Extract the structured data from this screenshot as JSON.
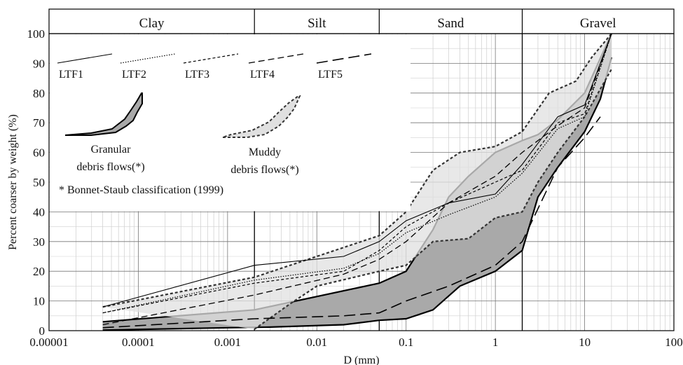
{
  "chart_data": {
    "type": "line",
    "title": "",
    "xlabel": "D (mm)",
    "ylabel": "Percent coarser by weight (%)",
    "x_scale": "log",
    "xlim": [
      1e-05,
      100
    ],
    "ylim": [
      0,
      100
    ],
    "x_ticks": [
      1e-05,
      0.0001,
      0.001,
      0.01,
      0.1,
      1,
      10,
      100
    ],
    "x_tick_labels": [
      "0.00001",
      "0.0001",
      "0.001",
      "0.01",
      "0.1",
      "1",
      "10",
      "100"
    ],
    "y_ticks": [
      0,
      10,
      20,
      30,
      40,
      50,
      60,
      70,
      80,
      90,
      100
    ],
    "y_tick_labels": [
      "0",
      "10",
      "20",
      "30",
      "40",
      "50",
      "60",
      "70",
      "80",
      "90",
      "100"
    ],
    "grid": true,
    "zones": [
      {
        "label": "Clay",
        "from": 1e-05,
        "to": 0.002
      },
      {
        "label": "Silt",
        "from": 0.002,
        "to": 0.05
      },
      {
        "label": "Sand",
        "from": 0.05,
        "to": 2
      },
      {
        "label": "Gravel",
        "from": 2,
        "to": 100
      }
    ],
    "envelopes": [
      {
        "name": "Granular debris flows(*)",
        "fill": "#a9a9a9",
        "stroke": "#000000",
        "dashed": false,
        "upper": [
          [
            4e-05,
            3
          ],
          [
            0.002,
            7
          ],
          [
            0.05,
            16
          ],
          [
            0.1,
            20
          ],
          [
            0.2,
            34
          ],
          [
            0.3,
            45
          ],
          [
            0.5,
            52
          ],
          [
            1,
            60
          ],
          [
            2,
            64
          ],
          [
            3,
            66
          ],
          [
            5,
            71
          ],
          [
            10,
            80
          ],
          [
            20,
            100
          ]
        ],
        "lower": [
          [
            4e-05,
            0.2
          ],
          [
            0.001,
            1
          ],
          [
            0.003,
            1.2
          ],
          [
            0.02,
            2
          ],
          [
            0.05,
            3.5
          ],
          [
            0.1,
            4
          ],
          [
            0.2,
            7
          ],
          [
            0.4,
            15
          ],
          [
            1,
            20
          ],
          [
            2,
            27
          ],
          [
            3,
            45
          ],
          [
            5,
            55
          ],
          [
            10,
            67
          ],
          [
            15,
            78
          ],
          [
            20,
            92
          ]
        ]
      },
      {
        "name": "Muddy debris flows(*)",
        "fill": "#e0e0e0",
        "stroke": "#333333",
        "dashed": true,
        "upper": [
          [
            4e-05,
            8
          ],
          [
            0.002,
            18
          ],
          [
            0.05,
            32
          ],
          [
            0.1,
            40
          ],
          [
            0.2,
            54
          ],
          [
            0.4,
            60
          ],
          [
            1,
            62
          ],
          [
            2,
            67
          ],
          [
            4,
            80
          ],
          [
            8,
            84
          ],
          [
            12,
            92
          ],
          [
            20,
            100
          ]
        ],
        "lower": [
          [
            0.002,
            0.5
          ],
          [
            0.005,
            9
          ],
          [
            0.01,
            15
          ],
          [
            0.05,
            20
          ],
          [
            0.1,
            22
          ],
          [
            0.2,
            30
          ],
          [
            0.5,
            31
          ],
          [
            1,
            38
          ],
          [
            2,
            40
          ],
          [
            3,
            50
          ],
          [
            5,
            60
          ],
          [
            10,
            72
          ],
          [
            20,
            88
          ]
        ]
      }
    ],
    "series": [
      {
        "name": "LTF1",
        "dash": "",
        "width": 1.1,
        "points": [
          [
            4e-05,
            8
          ],
          [
            0.002,
            22
          ],
          [
            0.02,
            25
          ],
          [
            0.05,
            30
          ],
          [
            0.1,
            37
          ],
          [
            0.3,
            43
          ],
          [
            1,
            46
          ],
          [
            2,
            56
          ],
          [
            5,
            72
          ],
          [
            10,
            76
          ],
          [
            20,
            100
          ]
        ]
      },
      {
        "name": "LTF2",
        "dash": "1.5,2",
        "width": 1.2,
        "points": [
          [
            4e-05,
            6
          ],
          [
            0.002,
            17
          ],
          [
            0.02,
            21
          ],
          [
            0.05,
            26
          ],
          [
            0.1,
            33
          ],
          [
            0.3,
            39
          ],
          [
            1,
            45
          ],
          [
            2,
            53
          ],
          [
            5,
            68
          ],
          [
            10,
            72
          ],
          [
            20,
            100
          ]
        ]
      },
      {
        "name": "LTF3",
        "dash": "4,3",
        "width": 1.2,
        "points": [
          [
            4e-05,
            6
          ],
          [
            0.002,
            16
          ],
          [
            0.02,
            20
          ],
          [
            0.05,
            27
          ],
          [
            0.1,
            35
          ],
          [
            0.3,
            43
          ],
          [
            1,
            50
          ],
          [
            2,
            54
          ],
          [
            5,
            70
          ],
          [
            10,
            73
          ],
          [
            20,
            100
          ]
        ]
      },
      {
        "name": "LTF4",
        "dash": "9,5",
        "width": 1.3,
        "points": [
          [
            4e-05,
            2
          ],
          [
            0.002,
            12
          ],
          [
            0.02,
            19
          ],
          [
            0.05,
            24
          ],
          [
            0.1,
            30
          ],
          [
            0.3,
            43
          ],
          [
            1,
            52
          ],
          [
            2,
            60
          ],
          [
            5,
            69
          ],
          [
            10,
            75
          ],
          [
            20,
            100
          ]
        ]
      },
      {
        "name": "LTF5",
        "dash": "16,7",
        "width": 1.6,
        "points": [
          [
            4e-05,
            1
          ],
          [
            0.002,
            4
          ],
          [
            0.02,
            5
          ],
          [
            0.05,
            6
          ],
          [
            0.1,
            10
          ],
          [
            0.3,
            15
          ],
          [
            1,
            22
          ],
          [
            2,
            30
          ],
          [
            5,
            55
          ],
          [
            10,
            65
          ],
          [
            15,
            72
          ]
        ]
      }
    ],
    "legend": {
      "placement": "top-left",
      "note": "* Bonnet-Staub classification (1999)"
    }
  }
}
